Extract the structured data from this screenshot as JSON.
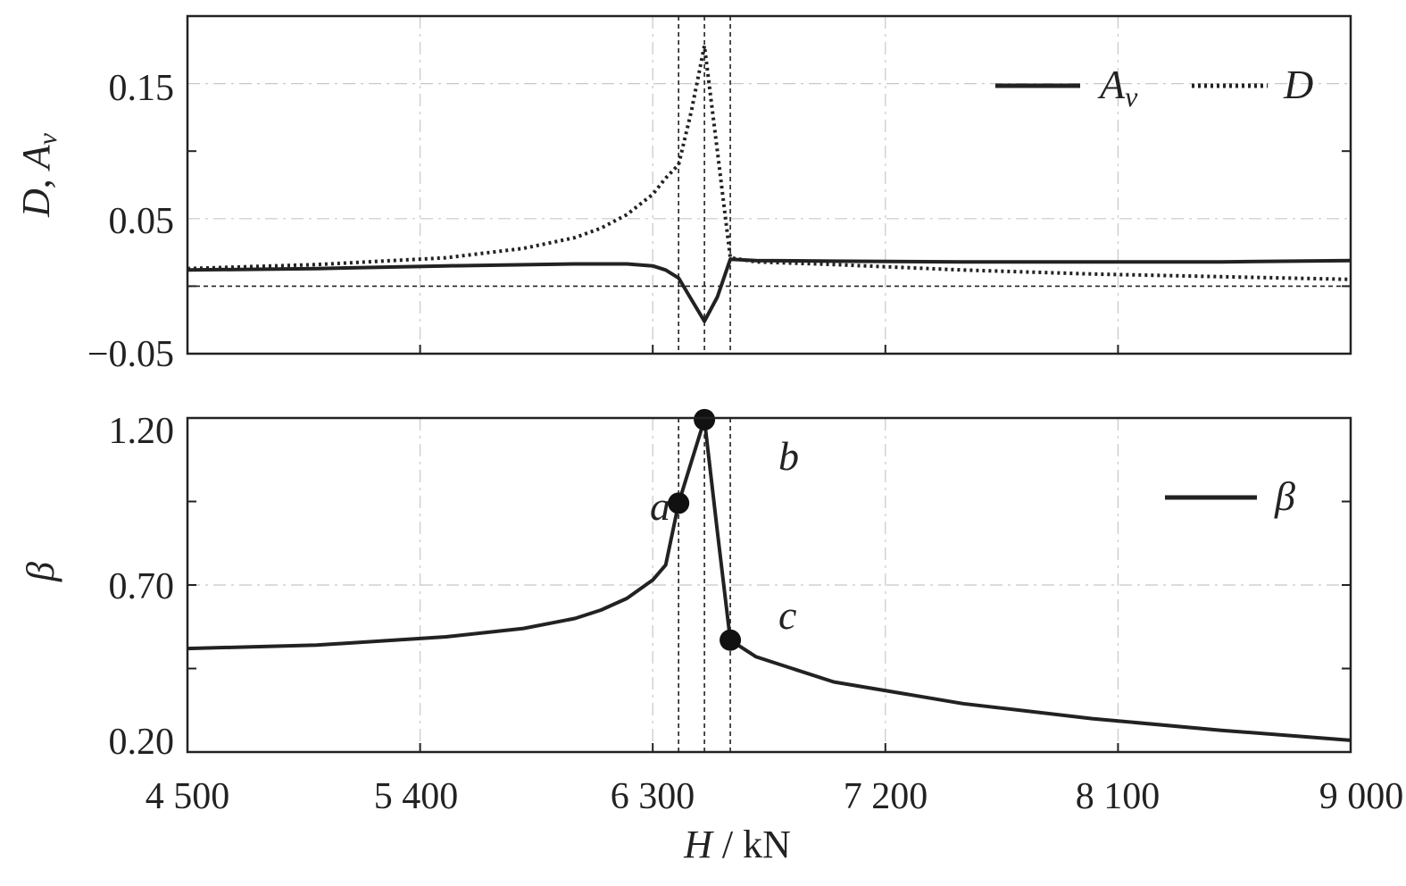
{
  "x_ticks": [
    "4 500",
    "5 400",
    "6 300",
    "7 200",
    "8 100",
    "9 000"
  ],
  "x_title": {
    "var": "H",
    "sep": " / ",
    "unit": "kN"
  },
  "top": {
    "y_ticks": [
      "0.15",
      "0.05",
      "−0.05"
    ],
    "y_title": {
      "p1": "D",
      "p2": ", ",
      "p3": "A",
      "p4": "v"
    },
    "legend": {
      "Av_main": "A",
      "Av_sub": "v",
      "D": "D"
    }
  },
  "bottom": {
    "y_ticks": [
      "1.20",
      "0.70",
      "0.20"
    ],
    "y_title": "β",
    "legend": "β",
    "points": {
      "a": "a",
      "b": "b",
      "c": "c"
    }
  },
  "chart_data": [
    {
      "type": "line",
      "xlabel": "H / kN",
      "ylabel": "D, Av",
      "xlim": [
        4500,
        9000
      ],
      "ylim": [
        -0.05,
        0.2
      ],
      "grid": true,
      "legend_position": "top-right",
      "reference_lines": {
        "x": [
          6400,
          6500,
          6600
        ],
        "y": [
          0
        ]
      },
      "series": [
        {
          "name": "Av",
          "style": "solid",
          "x": [
            4500,
            5000,
            5500,
            6000,
            6200,
            6300,
            6350,
            6400,
            6450,
            6500,
            6550,
            6600,
            6700,
            7000,
            7500,
            8000,
            8500,
            9000
          ],
          "y": [
            0.012,
            0.013,
            0.015,
            0.0165,
            0.0165,
            0.015,
            0.012,
            0.006,
            -0.01,
            -0.026,
            -0.008,
            0.02,
            0.019,
            0.0185,
            0.018,
            0.018,
            0.018,
            0.019
          ]
        },
        {
          "name": "D",
          "style": "dotted",
          "x": [
            4500,
            5000,
            5500,
            5800,
            6000,
            6100,
            6200,
            6300,
            6350,
            6400,
            6450,
            6500,
            6550,
            6600,
            6700,
            7000,
            7500,
            8000,
            8500,
            9000
          ],
          "y": [
            0.013,
            0.016,
            0.021,
            0.028,
            0.036,
            0.043,
            0.053,
            0.068,
            0.08,
            0.09,
            0.13,
            0.178,
            0.1,
            0.021,
            0.018,
            0.016,
            0.012,
            0.009,
            0.007,
            0.005
          ]
        }
      ]
    },
    {
      "type": "line",
      "xlabel": "H / kN",
      "ylabel": "β",
      "xlim": [
        4500,
        9000
      ],
      "ylim": [
        0.2,
        1.2
      ],
      "grid": true,
      "legend_position": "top-right",
      "reference_lines": {
        "x": [
          6400,
          6500,
          6600
        ]
      },
      "series": [
        {
          "name": "β",
          "style": "solid",
          "x": [
            4500,
            5000,
            5500,
            5800,
            6000,
            6100,
            6200,
            6300,
            6350,
            6400,
            6450,
            6500,
            6550,
            6600,
            6700,
            7000,
            7500,
            8000,
            8500,
            9000
          ],
          "y": [
            0.51,
            0.52,
            0.545,
            0.57,
            0.6,
            0.625,
            0.66,
            0.715,
            0.76,
            0.945,
            1.07,
            1.195,
            0.86,
            0.535,
            0.485,
            0.41,
            0.345,
            0.3,
            0.265,
            0.235
          ]
        }
      ],
      "labeled_points": [
        {
          "label": "a",
          "x": 6400,
          "y": 0.945
        },
        {
          "label": "b",
          "x": 6500,
          "y": 1.195
        },
        {
          "label": "c",
          "x": 6600,
          "y": 0.535
        }
      ]
    }
  ]
}
